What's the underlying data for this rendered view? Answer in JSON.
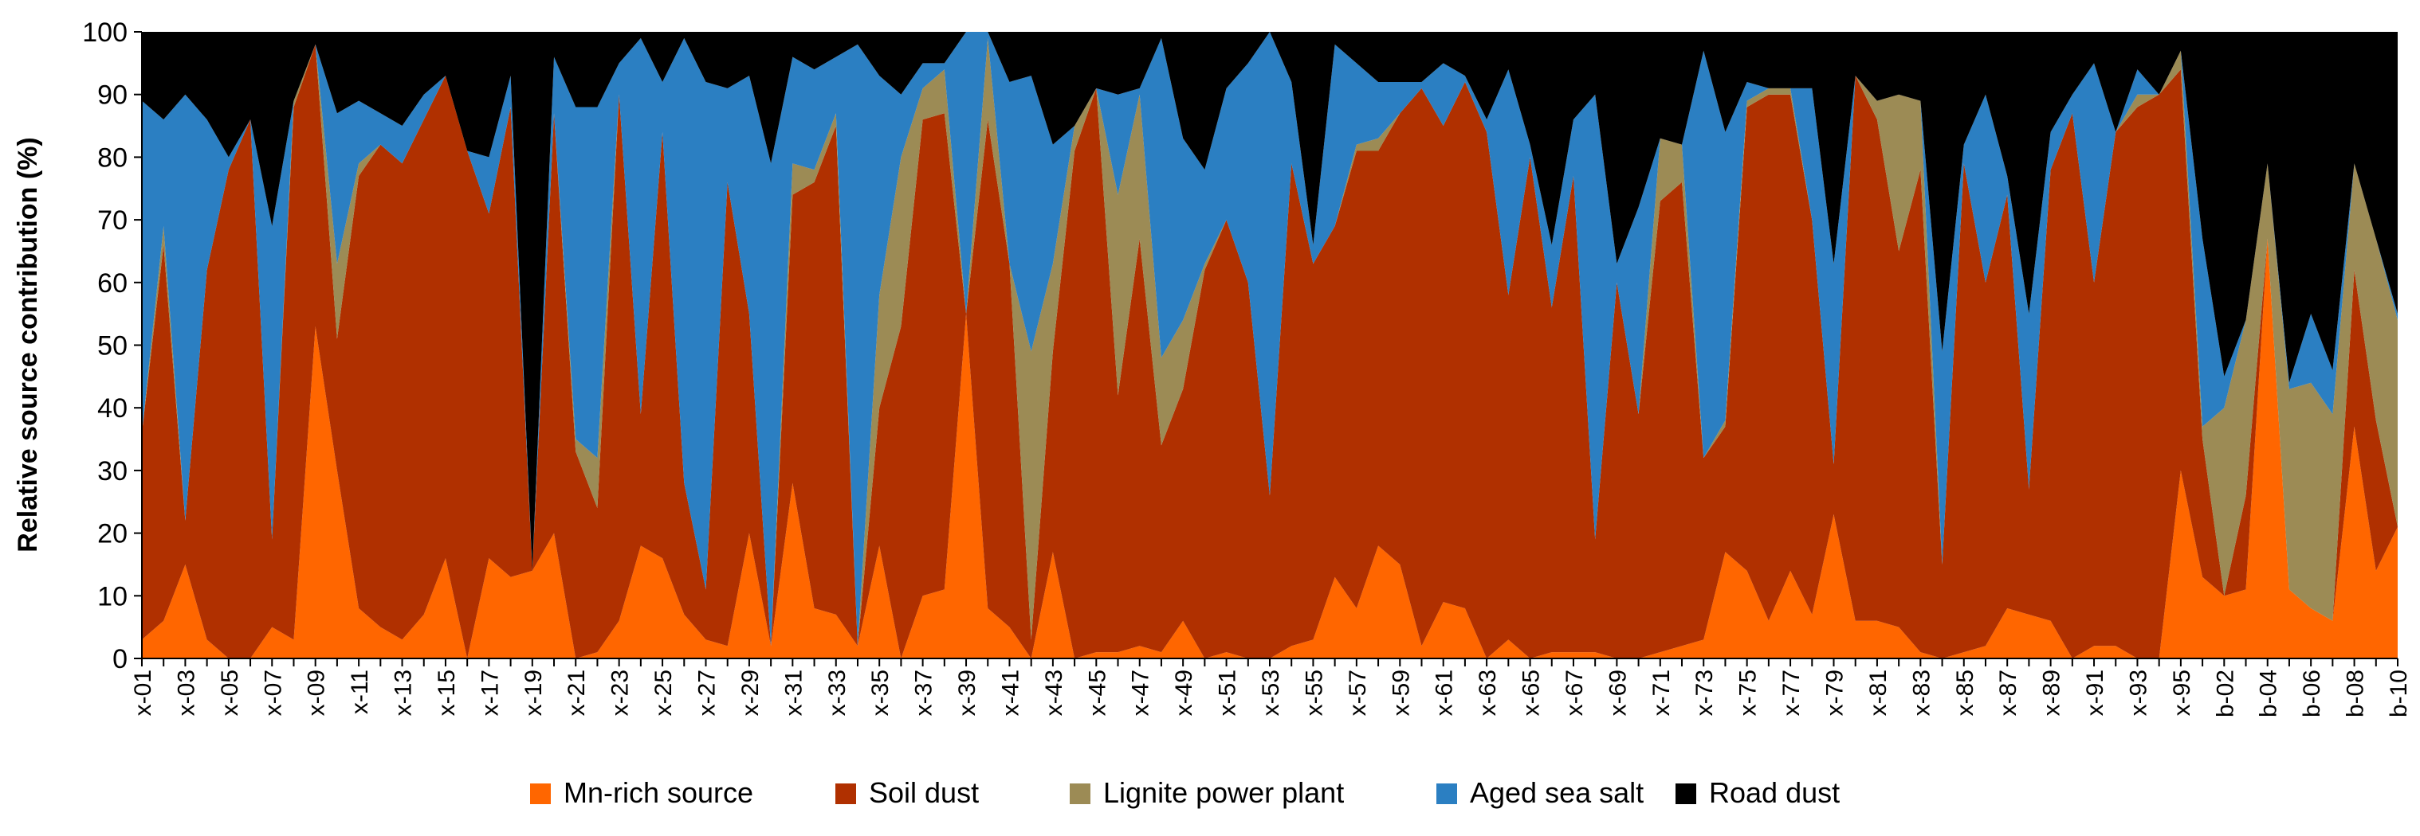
{
  "chart_data": {
    "type": "area",
    "stacked": true,
    "title": "",
    "xlabel": "",
    "ylabel": "Relative source contribution (%)",
    "ylim": [
      0,
      100
    ],
    "yticks": [
      0,
      10,
      20,
      30,
      40,
      50,
      60,
      70,
      80,
      90,
      100
    ],
    "grid": false,
    "legend_position": "bottom",
    "categories": [
      "x-01",
      "x-02",
      "x-03",
      "x-04",
      "x-05",
      "x-06",
      "x-07",
      "x-08",
      "x-09",
      "x-10",
      "x-11",
      "x-12",
      "x-13",
      "x-14",
      "x-15",
      "x-16",
      "x-17",
      "x-18",
      "x-19",
      "x-20",
      "x-21",
      "x-22",
      "x-23",
      "x-24",
      "x-25",
      "x-26",
      "x-27",
      "x-28",
      "x-29",
      "x-30",
      "x-31",
      "x-32",
      "x-33",
      "x-34",
      "x-35",
      "x-36",
      "x-37",
      "x-38",
      "x-39",
      "x-40",
      "x-41",
      "x-42",
      "x-43",
      "x-44",
      "x-45",
      "x-46",
      "x-47",
      "x-48",
      "x-49",
      "x-50",
      "x-51",
      "x-52",
      "x-53",
      "x-54",
      "x-55",
      "x-56",
      "x-57",
      "x-58",
      "x-59",
      "x-60",
      "x-61",
      "x-62",
      "x-63",
      "x-64",
      "x-65",
      "x-66",
      "x-67",
      "x-68",
      "x-69",
      "x-70",
      "x-71",
      "x-72",
      "x-73",
      "x-74",
      "x-75",
      "x-76",
      "x-77",
      "x-78",
      "x-79",
      "x-80",
      "x-81",
      "x-82",
      "x-83",
      "x-84",
      "x-85",
      "x-86",
      "x-87",
      "x-88",
      "x-89",
      "x-90",
      "x-91",
      "x-92",
      "x-93",
      "x-94",
      "x-95",
      "b-01",
      "b-02",
      "b-03",
      "b-04",
      "b-05",
      "b-06",
      "b-07",
      "b-08",
      "b-09",
      "b-10"
    ],
    "visible_tick_labels": [
      "x-01",
      "x-03",
      "x-05",
      "x-07",
      "x-09",
      "x-11",
      "x-13",
      "x-15",
      "x-17",
      "x-19",
      "x-21",
      "x-23",
      "x-25",
      "x-27",
      "x-29",
      "x-31",
      "x-33",
      "x-35",
      "x-37",
      "x-39",
      "x-41",
      "x-43",
      "x-45",
      "x-47",
      "x-49",
      "x-51",
      "x-53",
      "x-55",
      "x-57",
      "x-59",
      "x-61",
      "x-63",
      "x-65",
      "x-67",
      "x-69",
      "x-71",
      "x-73",
      "x-75",
      "x-77",
      "x-79",
      "x-81",
      "x-83",
      "x-85",
      "x-87",
      "x-89",
      "x-91",
      "x-93",
      "x-95",
      "b-02",
      "b-04",
      "b-06",
      "b-08",
      "b-10"
    ],
    "series": [
      {
        "name": "Mn-rich source",
        "color": "#FF6600",
        "values": [
          3,
          6,
          15,
          3,
          0,
          0,
          5,
          3,
          53,
          30,
          8,
          5,
          3,
          7,
          16,
          0,
          16,
          13,
          14,
          20,
          0,
          1,
          6,
          18,
          16,
          7,
          3,
          2,
          20,
          2,
          28,
          8,
          7,
          2,
          18,
          0,
          10,
          11,
          55,
          8,
          5,
          0,
          17,
          0,
          1,
          1,
          2,
          1,
          6,
          0,
          1,
          0,
          0,
          2,
          3,
          13,
          8,
          18,
          15,
          2,
          9,
          8,
          0,
          3,
          0,
          1,
          1,
          1,
          0,
          0,
          1,
          2,
          3,
          17,
          14,
          6,
          14,
          7,
          23,
          6,
          6,
          5,
          1,
          0,
          1,
          2,
          8,
          7,
          6,
          0,
          2,
          2,
          0,
          0,
          30,
          13,
          10,
          11,
          67,
          11,
          8,
          6,
          37,
          14,
          21
        ]
      },
      {
        "name": "Soil dust",
        "color": "#B03000",
        "values": [
          33,
          60,
          7,
          59,
          78,
          86,
          14,
          85,
          45,
          21,
          69,
          77,
          76,
          79,
          77,
          81,
          55,
          75,
          0,
          67,
          33,
          23,
          84,
          21,
          68,
          21,
          8,
          74,
          35,
          0,
          46,
          68,
          78,
          0,
          22,
          53,
          76,
          76,
          0,
          78,
          58,
          3,
          32,
          81,
          90,
          41,
          65,
          33,
          37,
          62,
          69,
          60,
          26,
          77,
          60,
          56,
          73,
          63,
          72,
          89,
          76,
          84,
          84,
          55,
          80,
          55,
          76,
          18,
          60,
          39,
          72,
          74,
          29,
          20,
          74,
          84,
          76,
          63,
          8,
          87,
          80,
          60,
          77,
          15,
          78,
          58,
          66,
          20,
          72,
          87,
          58,
          82,
          88,
          90,
          64,
          22,
          0,
          15,
          0,
          0,
          0,
          0,
          25,
          24,
          0
        ]
      },
      {
        "name": "Lignite power plant",
        "color": "#9C8B55",
        "values": [
          0,
          3,
          0,
          0,
          0,
          0,
          0,
          1,
          0,
          12,
          2,
          0,
          0,
          0,
          0,
          0,
          0,
          0,
          0,
          0,
          2,
          8,
          0,
          0,
          0,
          0,
          0,
          0,
          0,
          0,
          5,
          2,
          2,
          0,
          18,
          27,
          5,
          7,
          0,
          13,
          0,
          46,
          14,
          4,
          0,
          32,
          23,
          14,
          11,
          1,
          0,
          0,
          0,
          0,
          0,
          0,
          1,
          2,
          0,
          0,
          0,
          0,
          0,
          0,
          0,
          0,
          0,
          0,
          0,
          0,
          10,
          6,
          0,
          1,
          1,
          1,
          1,
          0,
          0,
          0,
          3,
          25,
          11,
          0,
          0,
          0,
          0,
          0,
          0,
          0,
          0,
          0,
          2,
          0,
          3,
          2,
          30,
          28,
          12,
          32,
          36,
          33,
          17,
          29,
          33
        ]
      },
      {
        "name": "Aged sea salt",
        "color": "#2B7FC2",
        "values": [
          53,
          17,
          68,
          24,
          2,
          0,
          50,
          0,
          0,
          24,
          10,
          5,
          6,
          4,
          0,
          0,
          9,
          5,
          0,
          9,
          53,
          56,
          5,
          60,
          8,
          71,
          81,
          15,
          38,
          77,
          17,
          16,
          9,
          96,
          35,
          10,
          4,
          1,
          45,
          1,
          29,
          44,
          19,
          0,
          0,
          16,
          1,
          51,
          29,
          15,
          21,
          35,
          74,
          13,
          3,
          29,
          13,
          9,
          5,
          1,
          10,
          1,
          2,
          36,
          2,
          10,
          9,
          71,
          3,
          33,
          0,
          0,
          65,
          46,
          3,
          0,
          0,
          21,
          32,
          0,
          0,
          0,
          0,
          34,
          3,
          30,
          3,
          28,
          6,
          3,
          35,
          0,
          4,
          0,
          0,
          30,
          5,
          0,
          0,
          1,
          11,
          7,
          0,
          0,
          1
        ]
      },
      {
        "name": "Road dust",
        "color": "#000000",
        "values": [
          11,
          14,
          10,
          14,
          20,
          14,
          31,
          11,
          2,
          13,
          11,
          13,
          15,
          10,
          7,
          19,
          20,
          7,
          86,
          4,
          12,
          12,
          5,
          1,
          8,
          1,
          8,
          9,
          7,
          21,
          4,
          6,
          4,
          2,
          7,
          10,
          5,
          5,
          0,
          0,
          8,
          7,
          18,
          15,
          9,
          10,
          9,
          1,
          17,
          22,
          9,
          5,
          0,
          8,
          34,
          2,
          5,
          8,
          8,
          8,
          5,
          7,
          14,
          6,
          18,
          34,
          14,
          10,
          37,
          28,
          17,
          18,
          3,
          16,
          8,
          9,
          9,
          9,
          37,
          7,
          11,
          10,
          11,
          51,
          18,
          10,
          23,
          45,
          16,
          10,
          5,
          16,
          6,
          10,
          3,
          33,
          55,
          46,
          21,
          56,
          45,
          54,
          21,
          33,
          45
        ]
      }
    ]
  }
}
